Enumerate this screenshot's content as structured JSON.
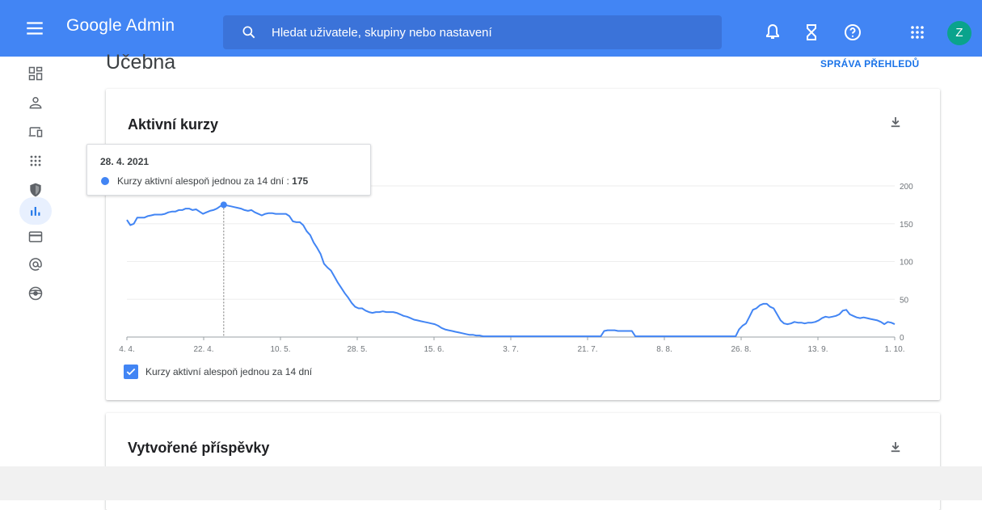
{
  "header": {
    "brand": "Google Admin",
    "search_placeholder": "Hledat uživatele, skupiny nebo nastavení",
    "avatar_letter": "Z",
    "icons": [
      "menu-icon",
      "search-icon",
      "bell-icon",
      "hourglass-icon",
      "help-icon",
      "apps-icon"
    ]
  },
  "sidebar": {
    "items": [
      {
        "name": "dashboard-icon"
      },
      {
        "name": "user-icon"
      },
      {
        "name": "devices-icon"
      },
      {
        "name": "apps-icon"
      },
      {
        "name": "security-icon"
      },
      {
        "name": "reports-icon",
        "active": true
      },
      {
        "name": "billing-icon"
      },
      {
        "name": "account-icon"
      },
      {
        "name": "rules-icon"
      }
    ]
  },
  "page": {
    "title": "Učebna",
    "manage_link": "SPRÁVA PŘEHLEDŮ"
  },
  "cards": {
    "active_courses": {
      "title": "Aktivní kurzy",
      "legend": "Kurzy aktivní alespoň jednou za 14 dní",
      "tooltip": {
        "date": "28. 4. 2021",
        "label": "Kurzy aktivní alespoň jednou za 14 dní : ",
        "value": "175"
      }
    },
    "posts": {
      "title": "Vytvořené příspěvky"
    }
  },
  "chart_data": {
    "type": "line",
    "x_tick_labels": [
      "4. 4.",
      "22. 4.",
      "10. 5.",
      "28. 5.",
      "15. 6.",
      "3. 7.",
      "21. 7.",
      "8. 8.",
      "26. 8.",
      "13. 9.",
      "1. 10."
    ],
    "y_ticks": [
      0,
      50,
      100,
      150,
      200
    ],
    "ylim": [
      0,
      200
    ],
    "series": [
      {
        "name": "Kurzy aktivní alespoň jednou za 14 dní",
        "color": "#4285f4",
        "values": [
          155,
          148,
          150,
          158,
          158,
          158,
          160,
          161,
          162,
          162,
          162,
          163,
          165,
          166,
          166,
          168,
          168,
          170,
          170,
          168,
          169,
          166,
          163,
          165,
          167,
          168,
          170,
          173,
          175,
          174,
          173,
          172,
          171,
          170,
          168,
          167,
          168,
          165,
          163,
          161,
          163,
          164,
          164,
          163,
          163,
          163,
          163,
          160,
          153,
          152,
          152,
          148,
          140,
          135,
          125,
          118,
          110,
          97,
          92,
          88,
          80,
          72,
          65,
          58,
          52,
          45,
          40,
          38,
          38,
          35,
          33,
          32,
          33,
          33,
          34,
          33,
          33,
          33,
          32,
          30,
          28,
          27,
          25,
          23,
          22,
          21,
          20,
          19,
          18,
          17,
          15,
          12,
          10,
          9,
          8,
          7,
          6,
          5,
          4,
          3,
          3,
          2,
          2,
          1,
          1,
          1,
          1,
          1,
          1,
          1,
          1,
          1,
          1,
          1,
          1,
          1,
          1,
          1,
          1,
          1,
          1,
          1,
          1,
          1,
          1,
          1,
          1,
          1,
          1,
          1,
          1,
          1,
          1,
          1,
          1,
          1,
          1,
          1,
          8,
          9,
          9,
          9,
          8,
          8,
          8,
          8,
          8,
          1,
          1,
          1,
          1,
          1,
          1,
          1,
          1,
          1,
          1,
          1,
          1,
          1,
          1,
          1,
          1,
          1,
          1,
          1,
          1,
          1,
          1,
          1,
          1,
          1,
          1,
          1,
          1,
          1,
          1,
          10,
          15,
          18,
          27,
          36,
          38,
          42,
          44,
          44,
          40,
          38,
          30,
          22,
          18,
          17,
          18,
          20,
          19,
          19,
          18,
          19,
          19,
          20,
          22,
          25,
          27,
          26,
          27,
          28,
          30,
          35,
          36,
          30,
          28,
          26,
          25,
          26,
          25,
          24,
          23,
          22,
          20,
          17,
          20,
          19,
          17
        ]
      }
    ],
    "highlight": {
      "date": "28. 4. 2021",
      "value": 175
    }
  }
}
